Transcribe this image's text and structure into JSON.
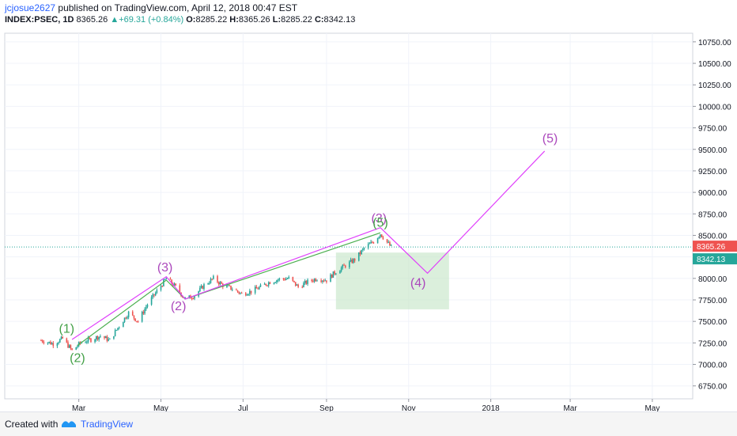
{
  "header": {
    "author": "jcjosue2627",
    "published_text": "published on TradingView.com, April 12, 2018 00:47 EST",
    "symbol": "INDEX:PSEC, 1D",
    "last": "8365.26",
    "change": "+69.31 (+0.84%)",
    "o_label": "O:",
    "o_value": "8285.22",
    "h_label": "H:",
    "h_value": "8365.26",
    "l_label": "L:",
    "l_value": "8285.22",
    "c_label": "C:",
    "c_value": "8342.13"
  },
  "footer": {
    "created_with": "Created with",
    "brand": "TradingView"
  },
  "colors": {
    "up": "#26a69a",
    "down": "#ef5350",
    "wave_magenta": "#e040fb",
    "wave_green": "#4caf50",
    "label_green": "#43a047",
    "label_purple": "#ab47bc",
    "price_line": "#26a69a",
    "projection_box": "#c8e6c9"
  },
  "chart_data": {
    "type": "candlestick",
    "y_axis": {
      "range": [
        6600,
        10850
      ],
      "ticks": [
        "6750.00",
        "7000.00",
        "7250.00",
        "7500.00",
        "7750.00",
        "8000.00",
        "8250.00",
        "8500.00",
        "8750.00",
        "9000.00",
        "9250.00",
        "9500.00",
        "9750.00",
        "10000.00",
        "10250.00",
        "10500.00",
        "10750.00"
      ]
    },
    "x_axis": {
      "ticks": [
        {
          "label": "Mar",
          "date": "2017-03-01"
        },
        {
          "label": "May",
          "date": "2017-05-01"
        },
        {
          "label": "Jul",
          "date": "2017-07-01"
        },
        {
          "label": "Sep",
          "date": "2017-09-01"
        },
        {
          "label": "Nov",
          "date": "2017-11-01"
        },
        {
          "label": "2018",
          "date": "2018-01-01"
        },
        {
          "label": "Mar",
          "date": "2018-03-01"
        },
        {
          "label": "May",
          "date": "2018-05-01"
        }
      ],
      "range": [
        "2017-01-05",
        "2018-05-31"
      ]
    },
    "price_path": [
      {
        "date": "2017-02-01",
        "close": 7280
      },
      {
        "date": "2017-02-10",
        "close": 7240
      },
      {
        "date": "2017-02-17",
        "close": 7300
      },
      {
        "date": "2017-02-24",
        "close": 7160
      },
      {
        "date": "2017-03-03",
        "close": 7260
      },
      {
        "date": "2017-03-10",
        "close": 7290
      },
      {
        "date": "2017-03-17",
        "close": 7330
      },
      {
        "date": "2017-03-24",
        "close": 7280
      },
      {
        "date": "2017-03-31",
        "close": 7450
      },
      {
        "date": "2017-04-07",
        "close": 7600
      },
      {
        "date": "2017-04-14",
        "close": 7500
      },
      {
        "date": "2017-04-21",
        "close": 7700
      },
      {
        "date": "2017-04-28",
        "close": 7850
      },
      {
        "date": "2017-05-05",
        "close": 8000
      },
      {
        "date": "2017-05-12",
        "close": 7900
      },
      {
        "date": "2017-05-19",
        "close": 7760
      },
      {
        "date": "2017-05-26",
        "close": 7800
      },
      {
        "date": "2017-06-02",
        "close": 7920
      },
      {
        "date": "2017-06-09",
        "close": 8000
      },
      {
        "date": "2017-06-16",
        "close": 7920
      },
      {
        "date": "2017-06-23",
        "close": 7880
      },
      {
        "date": "2017-06-30",
        "close": 7820
      },
      {
        "date": "2017-07-07",
        "close": 7850
      },
      {
        "date": "2017-07-14",
        "close": 7900
      },
      {
        "date": "2017-07-21",
        "close": 7960
      },
      {
        "date": "2017-07-28",
        "close": 7990
      },
      {
        "date": "2017-08-04",
        "close": 8000
      },
      {
        "date": "2017-08-11",
        "close": 7900
      },
      {
        "date": "2017-08-18",
        "close": 7960
      },
      {
        "date": "2017-08-25",
        "close": 8000
      },
      {
        "date": "2017-09-01",
        "close": 7980
      },
      {
        "date": "2017-09-08",
        "close": 8080
      },
      {
        "date": "2017-09-15",
        "close": 8150
      },
      {
        "date": "2017-09-22",
        "close": 8220
      },
      {
        "date": "2017-09-29",
        "close": 8350
      },
      {
        "date": "2017-10-06",
        "close": 8430
      },
      {
        "date": "2017-10-11",
        "close": 8520
      },
      {
        "date": "2017-10-16",
        "close": 8420
      },
      {
        "date": "2017-10-20",
        "close": 8342.13
      }
    ],
    "current_price": 8365.26,
    "price_labels": [
      "8365.26",
      "8342.13"
    ],
    "wave_count_magenta": [
      {
        "date": "2017-02-24",
        "price": 7290
      },
      {
        "date": "2017-05-05",
        "price": 8020
      },
      {
        "date": "2017-05-19",
        "price": 7760
      },
      {
        "date": "2017-10-11",
        "price": 8590
      },
      {
        "date": "2017-11-15",
        "price": 8060
      },
      {
        "date": "2018-02-10",
        "price": 9480
      }
    ],
    "wave_count_green": [
      {
        "date": "2017-02-28",
        "price": 7220
      },
      {
        "date": "2017-05-05",
        "price": 7980
      },
      {
        "date": "2017-05-19",
        "price": 7760
      },
      {
        "date": "2017-10-11",
        "price": 8530
      }
    ],
    "projection_box": {
      "date_start": "2017-09-08",
      "date_end": "2017-12-01",
      "bottom": 7640,
      "top": 8300
    },
    "annotations": [
      {
        "text": "(1)",
        "date": "2017-02-20",
        "price": 7370,
        "color": "green"
      },
      {
        "text": "(2)",
        "date": "2017-02-28",
        "price": 7030,
        "color": "green"
      },
      {
        "text": "(3)",
        "date": "2017-05-04",
        "price": 8080,
        "color": "purple"
      },
      {
        "text": "(2)",
        "date": "2017-05-14",
        "price": 7630,
        "color": "purple"
      },
      {
        "text": "(3)",
        "date": "2017-10-10",
        "price": 8650,
        "color": "purple"
      },
      {
        "text": "(5)",
        "date": "2017-10-11",
        "price": 8600,
        "color": "green"
      },
      {
        "text": "(4)",
        "date": "2017-11-08",
        "price": 7900,
        "color": "purple"
      },
      {
        "text": "(5)",
        "date": "2018-02-14",
        "price": 9580,
        "color": "purple"
      }
    ]
  }
}
